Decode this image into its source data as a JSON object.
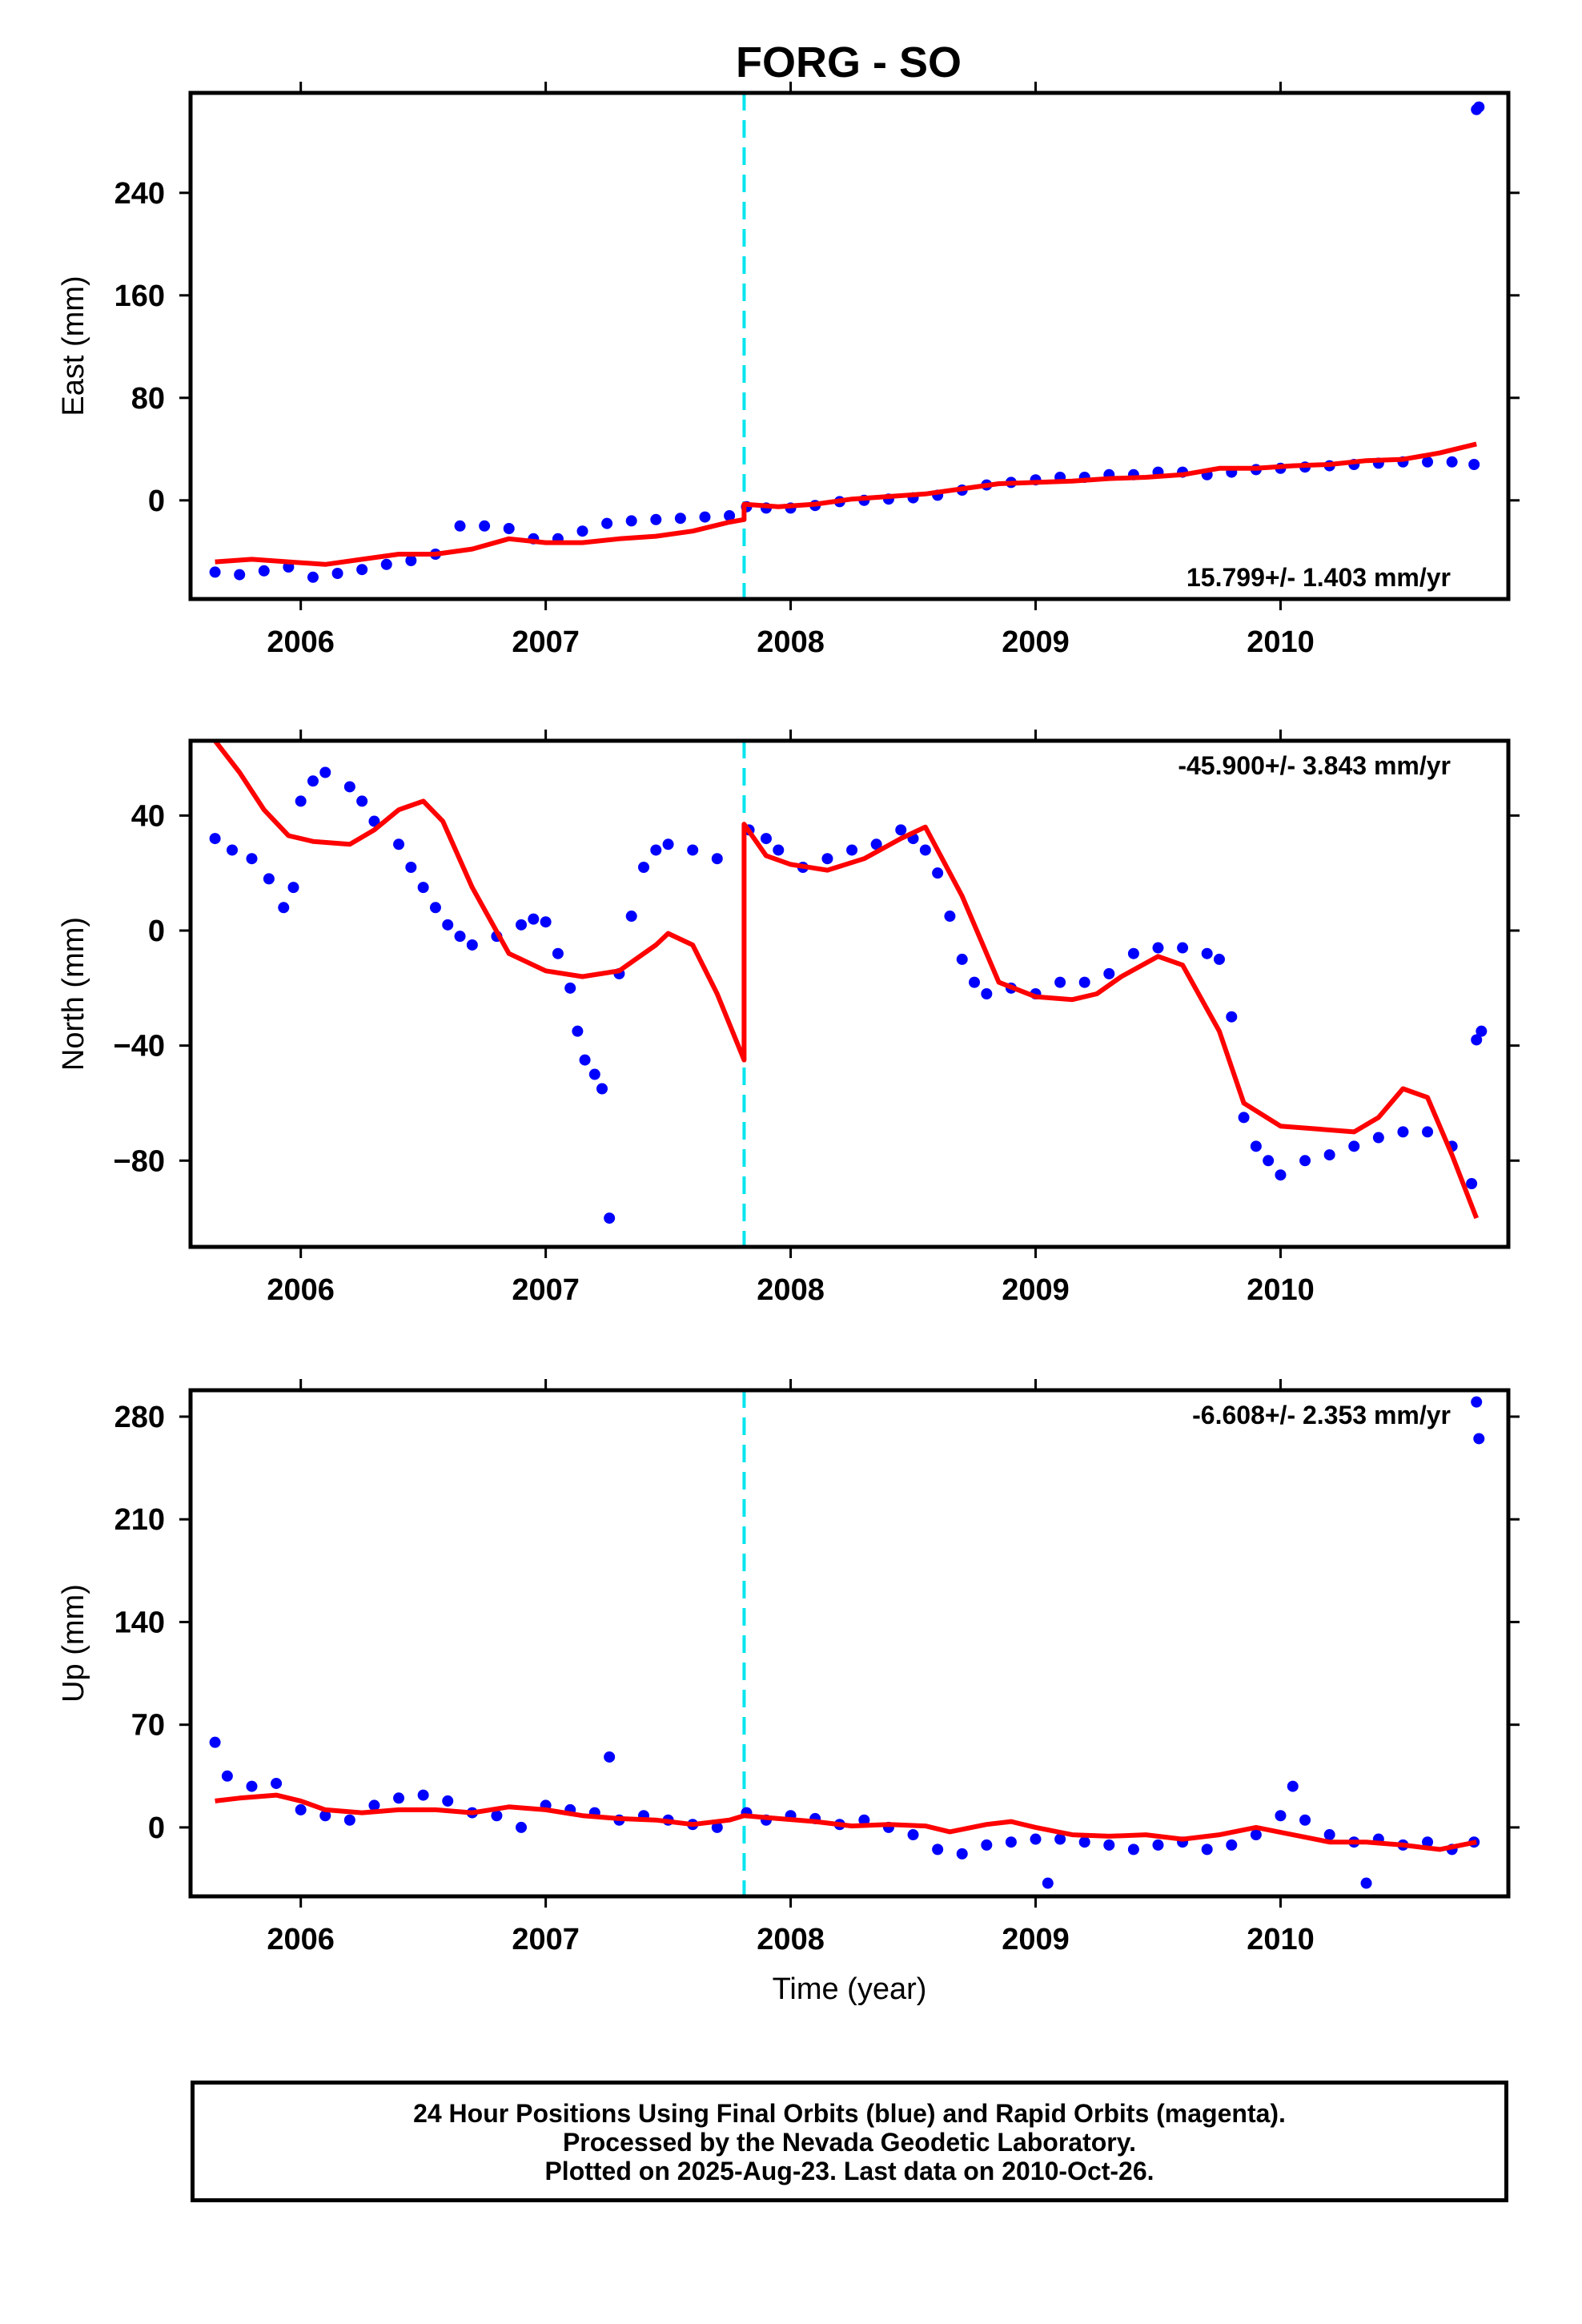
{
  "title": "FORG - SO",
  "chart_data": [
    {
      "type": "scatter",
      "ylabel": "East (mm)",
      "xlabel": "",
      "xlim": [
        2005.55,
        2010.93
      ],
      "ylim": [
        -77,
        318
      ],
      "x_ticks": [
        2006,
        2007,
        2008,
        2009,
        2010
      ],
      "x_tick_labels": [
        "2006",
        "2007",
        "2008",
        "2009",
        "2010"
      ],
      "y_ticks": [
        0,
        80,
        160,
        240
      ],
      "y_tick_labels": [
        "0",
        "80",
        "160",
        "240"
      ],
      "rate_label": "15.799+/- 1.403 mm/yr",
      "rate_position": "bottom-right",
      "dashed_line_x": 2007.81,
      "series": [
        {
          "kind": "points",
          "color": "#0000ff",
          "x": [
            2005.65,
            2005.75,
            2005.85,
            2005.95,
            2006.05,
            2006.15,
            2006.25,
            2006.35,
            2006.45,
            2006.55,
            2006.65,
            2006.75,
            2006.85,
            2006.95,
            2007.05,
            2007.15,
            2007.25,
            2007.35,
            2007.45,
            2007.55,
            2007.65,
            2007.75,
            2007.82,
            2007.9,
            2008.0,
            2008.1,
            2008.2,
            2008.3,
            2008.4,
            2008.5,
            2008.6,
            2008.7,
            2008.8,
            2008.9,
            2009.0,
            2009.1,
            2009.2,
            2009.3,
            2009.4,
            2009.5,
            2009.6,
            2009.7,
            2009.8,
            2009.9,
            2010.0,
            2010.1,
            2010.2,
            2010.3,
            2010.4,
            2010.5,
            2010.6,
            2010.7,
            2010.79,
            2010.8,
            2010.81
          ],
          "y": [
            -56,
            -58,
            -55,
            -52,
            -60,
            -57,
            -54,
            -50,
            -47,
            -42,
            -20,
            -20,
            -22,
            -30,
            -30,
            -24,
            -18,
            -16,
            -15,
            -14,
            -13,
            -12,
            -5,
            -6,
            -6,
            -4,
            -1,
            0,
            1,
            2,
            4,
            8,
            12,
            14,
            16,
            18,
            18,
            20,
            20,
            22,
            22,
            20,
            22,
            24,
            25,
            26,
            27,
            28,
            29,
            30,
            30,
            30,
            28,
            305,
            307
          ]
        },
        {
          "kind": "fit",
          "color": "#ff0000",
          "x": [
            2005.65,
            2005.8,
            2005.95,
            2006.1,
            2006.25,
            2006.4,
            2006.55,
            2006.7,
            2006.85,
            2007.0,
            2007.15,
            2007.3,
            2007.45,
            2007.6,
            2007.75,
            2007.81,
            2007.81,
            2007.95,
            2008.1,
            2008.25,
            2008.4,
            2008.55,
            2008.7,
            2008.85,
            2009.0,
            2009.15,
            2009.3,
            2009.45,
            2009.6,
            2009.75,
            2009.9,
            2010.05,
            2010.2,
            2010.35,
            2010.5,
            2010.65,
            2010.8
          ],
          "y": [
            -48,
            -46,
            -48,
            -50,
            -46,
            -42,
            -42,
            -38,
            -30,
            -33,
            -33,
            -30,
            -28,
            -24,
            -17,
            -15,
            -3,
            -5,
            -3,
            1,
            3,
            5,
            9,
            13,
            14,
            15,
            17,
            18,
            20,
            25,
            25,
            27,
            28,
            31,
            32,
            37,
            44
          ]
        }
      ]
    },
    {
      "type": "scatter",
      "ylabel": "North (mm)",
      "xlabel": "",
      "xlim": [
        2005.55,
        2010.93
      ],
      "ylim": [
        -110,
        66
      ],
      "x_ticks": [
        2006,
        2007,
        2008,
        2009,
        2010
      ],
      "x_tick_labels": [
        "2006",
        "2007",
        "2008",
        "2009",
        "2010"
      ],
      "y_ticks": [
        -80,
        -40,
        0,
        40
      ],
      "y_tick_labels": [
        "−80",
        "−40",
        "0",
        "40"
      ],
      "rate_label": "-45.900+/- 3.843 mm/yr",
      "rate_position": "top-right",
      "dashed_line_x": 2007.81,
      "series": [
        {
          "kind": "points",
          "color": "#0000ff",
          "x": [
            2005.65,
            2005.72,
            2005.8,
            2005.87,
            2005.93,
            2005.97,
            2006.0,
            2006.05,
            2006.1,
            2006.2,
            2006.25,
            2006.3,
            2006.4,
            2006.45,
            2006.5,
            2006.55,
            2006.6,
            2006.65,
            2006.7,
            2006.8,
            2006.9,
            2006.95,
            2007.0,
            2007.05,
            2007.1,
            2007.13,
            2007.16,
            2007.2,
            2007.23,
            2007.26,
            2007.3,
            2007.35,
            2007.4,
            2007.45,
            2007.5,
            2007.6,
            2007.7,
            2007.83,
            2007.9,
            2007.95,
            2008.05,
            2008.15,
            2008.25,
            2008.35,
            2008.45,
            2008.5,
            2008.55,
            2008.6,
            2008.65,
            2008.7,
            2008.75,
            2008.8,
            2008.9,
            2009.0,
            2009.1,
            2009.2,
            2009.3,
            2009.4,
            2009.5,
            2009.6,
            2009.7,
            2009.75,
            2009.8,
            2009.85,
            2009.9,
            2009.95,
            2010.0,
            2010.1,
            2010.2,
            2010.3,
            2010.4,
            2010.5,
            2010.6,
            2010.7,
            2010.78,
            2010.8,
            2010.82
          ],
          "y": [
            32,
            28,
            25,
            18,
            8,
            15,
            45,
            52,
            55,
            50,
            45,
            38,
            30,
            22,
            15,
            8,
            2,
            -2,
            -5,
            -2,
            2,
            4,
            3,
            -8,
            -20,
            -35,
            -45,
            -50,
            -55,
            -100,
            -15,
            5,
            22,
            28,
            30,
            28,
            25,
            35,
            32,
            28,
            22,
            25,
            28,
            30,
            35,
            32,
            28,
            20,
            5,
            -10,
            -18,
            -22,
            -20,
            -22,
            -18,
            -18,
            -15,
            -8,
            -6,
            -6,
            -8,
            -10,
            -30,
            -65,
            -75,
            -80,
            -85,
            -80,
            -78,
            -75,
            -72,
            -70,
            -70,
            -75,
            -88,
            -38,
            -35
          ]
        },
        {
          "kind": "fit",
          "color": "#ff0000",
          "x": [
            2005.65,
            2005.75,
            2005.85,
            2005.95,
            2006.05,
            2006.2,
            2006.3,
            2006.4,
            2006.5,
            2006.58,
            2006.7,
            2006.85,
            2007.0,
            2007.15,
            2007.3,
            2007.45,
            2007.5,
            2007.6,
            2007.7,
            2007.81,
            2007.81,
            2007.9,
            2008.0,
            2008.15,
            2008.3,
            2008.45,
            2008.55,
            2008.7,
            2008.85,
            2009.0,
            2009.15,
            2009.25,
            2009.35,
            2009.5,
            2009.6,
            2009.75,
            2009.85,
            2010.0,
            2010.15,
            2010.3,
            2010.4,
            2010.5,
            2010.6,
            2010.7,
            2010.8
          ],
          "y": [
            66,
            55,
            42,
            33,
            31,
            30,
            35,
            42,
            45,
            38,
            15,
            -8,
            -14,
            -16,
            -14,
            -5,
            -1,
            -5,
            -22,
            -45,
            37,
            26,
            23,
            21,
            25,
            32,
            36,
            12,
            -18,
            -23,
            -24,
            -22,
            -16,
            -9,
            -12,
            -35,
            -60,
            -68,
            -69,
            -70,
            -65,
            -55,
            -58,
            -78,
            -100
          ]
        }
      ]
    },
    {
      "type": "scatter",
      "ylabel": "Up (mm)",
      "xlabel": "Time (year)",
      "xlim": [
        2005.55,
        2010.93
      ],
      "ylim": [
        -47,
        298
      ],
      "x_ticks": [
        2006,
        2007,
        2008,
        2009,
        2010
      ],
      "x_tick_labels": [
        "2006",
        "2007",
        "2008",
        "2009",
        "2010"
      ],
      "y_ticks": [
        0,
        70,
        140,
        210,
        280
      ],
      "y_tick_labels": [
        "0",
        "70",
        "140",
        "210",
        "280"
      ],
      "rate_label": "-6.608+/- 2.353 mm/yr",
      "rate_position": "top-right",
      "dashed_line_x": 2007.81,
      "series": [
        {
          "kind": "points",
          "color": "#0000ff",
          "x": [
            2005.65,
            2005.7,
            2005.8,
            2005.9,
            2006.0,
            2006.1,
            2006.2,
            2006.3,
            2006.4,
            2006.5,
            2006.6,
            2006.7,
            2006.8,
            2006.9,
            2007.0,
            2007.1,
            2007.2,
            2007.26,
            2007.3,
            2007.4,
            2007.5,
            2007.6,
            2007.7,
            2007.82,
            2007.9,
            2008.0,
            2008.1,
            2008.2,
            2008.3,
            2008.4,
            2008.5,
            2008.6,
            2008.7,
            2008.8,
            2008.9,
            2009.0,
            2009.05,
            2009.1,
            2009.2,
            2009.3,
            2009.4,
            2009.5,
            2009.6,
            2009.7,
            2009.8,
            2009.9,
            2010.0,
            2010.05,
            2010.1,
            2010.2,
            2010.3,
            2010.35,
            2010.4,
            2010.5,
            2010.6,
            2010.7,
            2010.79,
            2010.8,
            2010.81
          ],
          "y": [
            58,
            35,
            28,
            30,
            12,
            8,
            5,
            15,
            20,
            22,
            18,
            10,
            8,
            0,
            15,
            12,
            10,
            48,
            5,
            8,
            5,
            2,
            0,
            10,
            5,
            8,
            6,
            2,
            5,
            0,
            -5,
            -15,
            -18,
            -12,
            -10,
            -8,
            -38,
            -8,
            -10,
            -12,
            -15,
            -12,
            -10,
            -15,
            -12,
            -5,
            8,
            28,
            5,
            -5,
            -10,
            -38,
            -8,
            -12,
            -10,
            -15,
            -10,
            290,
            265
          ]
        },
        {
          "kind": "fit",
          "color": "#ff0000",
          "x": [
            2005.65,
            2005.75,
            2005.9,
            2006.0,
            2006.1,
            2006.25,
            2006.4,
            2006.55,
            2006.7,
            2006.85,
            2007.0,
            2007.15,
            2007.3,
            2007.45,
            2007.6,
            2007.75,
            2007.81,
            2007.95,
            2008.1,
            2008.25,
            2008.4,
            2008.55,
            2008.65,
            2008.8,
            2008.9,
            2009.0,
            2009.15,
            2009.3,
            2009.45,
            2009.6,
            2009.75,
            2009.9,
            2010.05,
            2010.2,
            2010.35,
            2010.5,
            2010.65,
            2010.8
          ],
          "y": [
            18,
            20,
            22,
            18,
            12,
            10,
            12,
            12,
            10,
            14,
            12,
            8,
            6,
            5,
            2,
            5,
            8,
            6,
            4,
            1,
            2,
            1,
            -3,
            2,
            4,
            0,
            -5,
            -6,
            -5,
            -8,
            -5,
            0,
            -5,
            -10,
            -10,
            -12,
            -15,
            -10
          ]
        }
      ]
    }
  ],
  "footer": {
    "line1": "24 Hour Positions Using Final Orbits (blue) and Rapid Orbits (magenta).",
    "line2": "Processed by the Nevada Geodetic Laboratory.",
    "line3": "Plotted on 2025-Aug-23. Last data on 2010-Oct-26."
  }
}
